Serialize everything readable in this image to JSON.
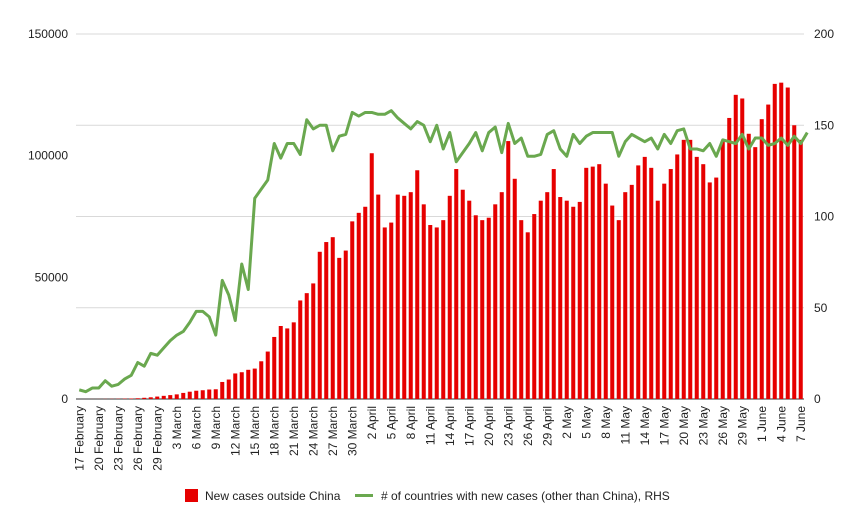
{
  "chart_data": {
    "type": "bar",
    "legend_position": "bottom",
    "grid": true,
    "colors": {
      "bars": "#e60000",
      "line": "#6aa84f"
    },
    "y_left": {
      "min": 0,
      "max": 150000,
      "ticks": [
        "0",
        "50000",
        "100000",
        "150000"
      ]
    },
    "y_right": {
      "min": 0,
      "max": 200,
      "ticks": [
        "0",
        "50",
        "100",
        "150",
        "200"
      ]
    },
    "x_tick_labels": [
      "17 February",
      "20 February",
      "23 February",
      "26 February",
      "29 February",
      "3 March",
      "6 March",
      "9 March",
      "12 March",
      "15 March",
      "18 March",
      "21 March",
      "24 March",
      "27 March",
      "30 March",
      "2 April",
      "5 April",
      "8 April",
      "11 April",
      "14 April",
      "17 April",
      "20 April",
      "23 April",
      "26 April",
      "29 April",
      "2 May",
      "5 May",
      "8 May",
      "11 May",
      "14 May",
      "17 May",
      "20 May",
      "23 May",
      "26 May",
      "29 May",
      "1 June",
      "4 June",
      "7 June"
    ],
    "series": [
      {
        "name": "New cases outside China",
        "axis": "left",
        "kind": "bar",
        "values": [
          5,
          10,
          20,
          30,
          50,
          70,
          100,
          150,
          200,
          300,
          500,
          700,
          1000,
          1300,
          1600,
          1900,
          2500,
          3000,
          3400,
          3600,
          3900,
          4000,
          7000,
          8000,
          10500,
          11000,
          12000,
          12500,
          15500,
          19500,
          25500,
          30000,
          29000,
          31500,
          40500,
          43500,
          47500,
          60500,
          64500,
          66500,
          58000,
          61000,
          73000,
          76500,
          79000,
          101000,
          84000,
          70500,
          72500,
          84000,
          83500,
          85000,
          94000,
          80000,
          71500,
          70500,
          73500,
          83500,
          94500,
          86000,
          81500,
          75500,
          73500,
          74500,
          80000,
          85000,
          106000,
          90500,
          73500,
          68500,
          76000,
          81500,
          85000,
          94500,
          83000,
          81500,
          79000,
          81000,
          95000,
          95500,
          96500,
          88500,
          79500,
          73500,
          85000,
          88000,
          96000,
          99500,
          95000,
          81500,
          88500,
          94500,
          100500,
          106500,
          106500,
          99500,
          96500,
          89000,
          91000,
          106000,
          115500,
          125000,
          123500,
          109000,
          103500,
          115000,
          121000,
          129500,
          130000,
          128000,
          112500,
          106500
        ]
      },
      {
        "name": "# of countries with new cases (other than China), RHS",
        "axis": "right",
        "kind": "line",
        "values": [
          5,
          4,
          6,
          6,
          10,
          7,
          8,
          11,
          13,
          20,
          18,
          25,
          24,
          28,
          32,
          35,
          37,
          42,
          48,
          48,
          45,
          35,
          65,
          57,
          43,
          74,
          60,
          110,
          115,
          120,
          140,
          132,
          140,
          140,
          134,
          153,
          148,
          150,
          150,
          136,
          144,
          145,
          157,
          155,
          157,
          157,
          156,
          156,
          158,
          154,
          151,
          148,
          152,
          150,
          141,
          150,
          137,
          146,
          130,
          135,
          140,
          146,
          136,
          146,
          149,
          135,
          151,
          140,
          143,
          133,
          133,
          134,
          145,
          147,
          137,
          133,
          145,
          140,
          144,
          146,
          146,
          146,
          146,
          133,
          141,
          145,
          143,
          141,
          143,
          137,
          145,
          140,
          147,
          148,
          137,
          137,
          136,
          140,
          133,
          142,
          141,
          140,
          145,
          137,
          143,
          143,
          139,
          140,
          143,
          139,
          144,
          140,
          146
        ]
      }
    ],
    "legend": [
      {
        "label": "New cases outside China"
      },
      {
        "label": "# of countries with new cases (other than China), RHS"
      }
    ]
  }
}
